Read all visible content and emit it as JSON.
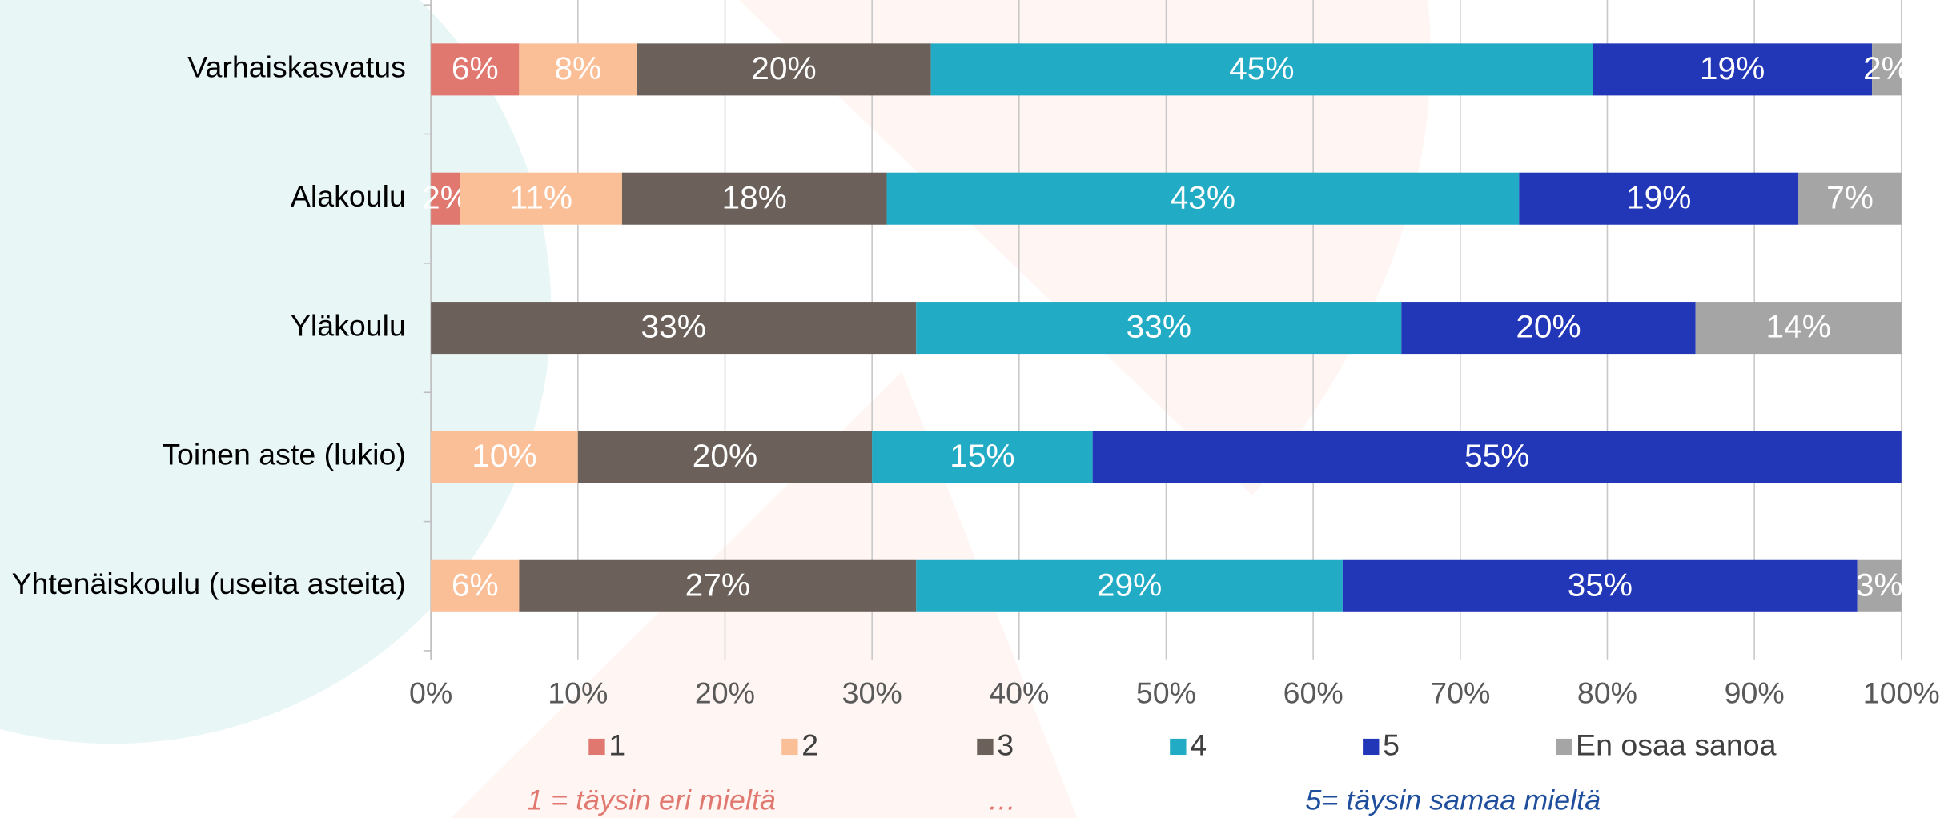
{
  "chart_data": {
    "type": "stacked_barh",
    "categories": [
      "Varhaiskasvatus",
      "Alakoulu",
      "Yläkoulu",
      "Toinen aste (lukio)",
      "Yhtenäiskoulu (useita asteita)"
    ],
    "series": [
      {
        "name": "1",
        "color": "#e07870",
        "values": [
          6,
          2,
          null,
          null,
          null
        ],
        "value_labels": [
          "6%",
          "2%",
          null,
          null,
          null
        ]
      },
      {
        "name": "2",
        "color": "#fbbf98",
        "values": [
          8,
          11,
          null,
          10,
          6
        ],
        "value_labels": [
          "8%",
          "11%",
          null,
          "10%",
          "6%"
        ]
      },
      {
        "name": "3",
        "color": "#6b615a",
        "values": [
          20,
          18,
          33,
          20,
          27
        ],
        "value_labels": [
          "20%",
          "18%",
          "33%",
          "20%",
          "27%"
        ]
      },
      {
        "name": "4",
        "color": "#22abc5",
        "values": [
          45,
          43,
          33,
          15,
          29
        ],
        "value_labels": [
          "45%",
          "43%",
          "33%",
          "15%",
          "29%"
        ]
      },
      {
        "name": "5",
        "color": "#2236b8",
        "values": [
          19,
          19,
          20,
          55,
          35
        ],
        "value_labels": [
          "19%",
          "19%",
          "20%",
          "55%",
          "35%"
        ]
      },
      {
        "name": "En osaa sanoa",
        "color": "#a5a5a5",
        "values": [
          2,
          7,
          14,
          null,
          3
        ],
        "value_labels": [
          "2%",
          "7%",
          "14%",
          null,
          "3%"
        ]
      }
    ],
    "xlim": [
      0,
      100
    ],
    "xticks": [
      {
        "value": 0,
        "label": "0%"
      },
      {
        "value": 10,
        "label": "10%"
      },
      {
        "value": 20,
        "label": "20%"
      },
      {
        "value": 30,
        "label": "30%"
      },
      {
        "value": 40,
        "label": "40%"
      },
      {
        "value": 50,
        "label": "50%"
      },
      {
        "value": 60,
        "label": "60%"
      },
      {
        "value": 70,
        "label": "70%"
      },
      {
        "value": 80,
        "label": "80%"
      },
      {
        "value": 90,
        "label": "90%"
      },
      {
        "value": 100,
        "label": "100%"
      }
    ],
    "grid": true,
    "legend": "bottom",
    "annotations": [
      {
        "text": "1 = täysin eri mieltä",
        "color": "#e07870"
      },
      {
        "text": "…",
        "color": "#e07870"
      },
      {
        "text": "5= täysin samaa mieltä",
        "color": "#1f4e9c"
      }
    ]
  }
}
